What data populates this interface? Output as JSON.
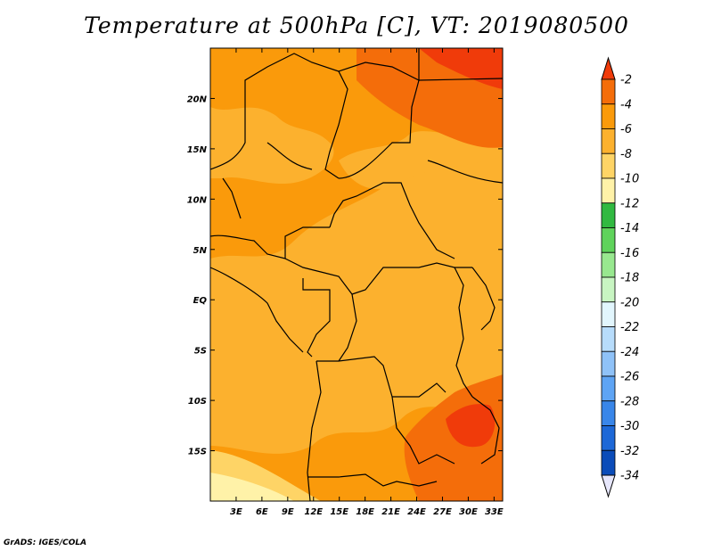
{
  "title": "Temperature at 500hPa [C], VT: 2019080500",
  "credit": "GrADS: IGES/COLA",
  "map": {
    "lon_range": [
      0,
      34
    ],
    "lat_range": [
      -20,
      25
    ],
    "lon_ticks": [
      {
        "value": 3,
        "label": "3E"
      },
      {
        "value": 6,
        "label": "6E"
      },
      {
        "value": 9,
        "label": "9E"
      },
      {
        "value": 12,
        "label": "12E"
      },
      {
        "value": 15,
        "label": "15E"
      },
      {
        "value": 18,
        "label": "18E"
      },
      {
        "value": 21,
        "label": "21E"
      },
      {
        "value": 24,
        "label": "24E"
      },
      {
        "value": 27,
        "label": "27E"
      },
      {
        "value": 30,
        "label": "30E"
      },
      {
        "value": 33,
        "label": "33E"
      }
    ],
    "lat_ticks": [
      {
        "value": 20,
        "label": "20N"
      },
      {
        "value": 15,
        "label": "15N"
      },
      {
        "value": 10,
        "label": "10N"
      },
      {
        "value": 5,
        "label": "5N"
      },
      {
        "value": 0,
        "label": "EQ"
      },
      {
        "value": -5,
        "label": "5S"
      },
      {
        "value": -10,
        "label": "10S"
      },
      {
        "value": -15,
        "label": "15S"
      }
    ]
  },
  "colorbar": {
    "levels": [
      {
        "label": "-2",
        "color": "#f46d0a"
      },
      {
        "label": "-4",
        "color": "#fa9a0b"
      },
      {
        "label": "-6",
        "color": "#fcb12e"
      },
      {
        "label": "-8",
        "color": "#fed466"
      },
      {
        "label": "-10",
        "color": "#fff2a8"
      },
      {
        "label": "-12",
        "color": "#31b941"
      },
      {
        "label": "-14",
        "color": "#5fd35b"
      },
      {
        "label": "-16",
        "color": "#98e88f"
      },
      {
        "label": "-18",
        "color": "#c8f5c2"
      },
      {
        "label": "-20",
        "color": "#e2f6fd"
      },
      {
        "label": "-22",
        "color": "#b7dcfb"
      },
      {
        "label": "-24",
        "color": "#8fc2f8"
      },
      {
        "label": "-26",
        "color": "#5ea4f4"
      },
      {
        "label": "-28",
        "color": "#3986e9"
      },
      {
        "label": "-30",
        "color": "#1d68d7"
      },
      {
        "label": "-32",
        "color": "#0b4cb9"
      },
      {
        "label": "-34",
        "color": "#0d0b7a"
      }
    ],
    "top_arrow_color": "#f03b0a",
    "bottom_arrow_color": "#e6e6fb"
  }
}
